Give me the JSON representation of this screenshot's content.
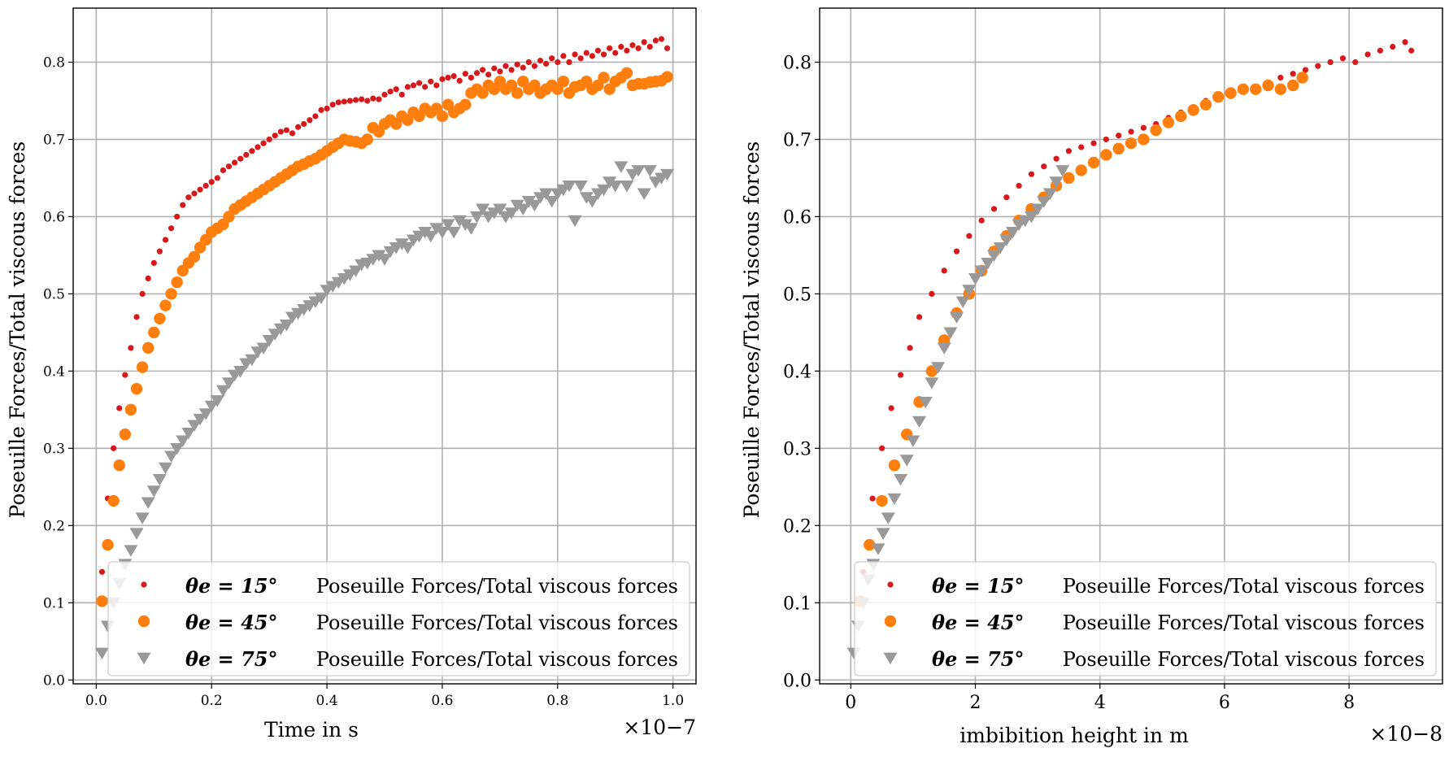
{
  "colors": {
    "series_15": "#d7191c",
    "series_45": "#ff7f0e",
    "series_75": "#999999",
    "grid": "#b0b0b0"
  },
  "chart_data": [
    {
      "type": "scatter",
      "xlabel": "Time in s",
      "ylabel": "Poseuille Forces/Total viscous forces",
      "x_multiplier": "×10−7",
      "xlim": [
        -0.04,
        1.04
      ],
      "ylim": [
        -0.005,
        0.87
      ],
      "xticks": [
        0.0,
        0.2,
        0.4,
        0.6,
        0.8,
        1.0
      ],
      "xtick_labels": [
        "0.0",
        "0.2",
        "0.4",
        "0.6",
        "0.8",
        "1.0"
      ],
      "yticks": [
        0.0,
        0.1,
        0.2,
        0.3,
        0.4,
        0.5,
        0.6,
        0.7,
        0.8
      ],
      "ytick_labels": [
        "0.0",
        "0.1",
        "0.2",
        "0.3",
        "0.4",
        "0.5",
        "0.6",
        "0.7",
        "0.8"
      ],
      "grid": true,
      "legend_position": "bottom-right",
      "series": [
        {
          "name": "Poseuille Forces/Total viscous forces",
          "label_prefix": "θe = 15°",
          "marker": "small-circle",
          "x": [
            0.01,
            0.02,
            0.03,
            0.04,
            0.05,
            0.06,
            0.07,
            0.08,
            0.09,
            0.1,
            0.11,
            0.12,
            0.13,
            0.14,
            0.15,
            0.16,
            0.17,
            0.18,
            0.19,
            0.2,
            0.21,
            0.22,
            0.23,
            0.24,
            0.25,
            0.26,
            0.27,
            0.28,
            0.29,
            0.3,
            0.31,
            0.32,
            0.33,
            0.34,
            0.35,
            0.36,
            0.37,
            0.38,
            0.39,
            0.4,
            0.41,
            0.42,
            0.43,
            0.44,
            0.45,
            0.46,
            0.47,
            0.48,
            0.49,
            0.5,
            0.51,
            0.52,
            0.53,
            0.54,
            0.55,
            0.56,
            0.57,
            0.58,
            0.59,
            0.6,
            0.61,
            0.62,
            0.63,
            0.64,
            0.65,
            0.66,
            0.67,
            0.68,
            0.69,
            0.7,
            0.71,
            0.72,
            0.73,
            0.74,
            0.75,
            0.76,
            0.77,
            0.78,
            0.79,
            0.8,
            0.81,
            0.82,
            0.83,
            0.84,
            0.85,
            0.86,
            0.87,
            0.88,
            0.89,
            0.9,
            0.91,
            0.92,
            0.93,
            0.94,
            0.95,
            0.96,
            0.97,
            0.98,
            0.99
          ],
          "y": [
            0.14,
            0.235,
            0.3,
            0.352,
            0.395,
            0.43,
            0.47,
            0.5,
            0.52,
            0.54,
            0.555,
            0.57,
            0.585,
            0.6,
            0.615,
            0.625,
            0.63,
            0.635,
            0.64,
            0.645,
            0.65,
            0.66,
            0.665,
            0.67,
            0.675,
            0.68,
            0.685,
            0.69,
            0.695,
            0.7,
            0.705,
            0.71,
            0.712,
            0.708,
            0.716,
            0.72,
            0.725,
            0.73,
            0.738,
            0.74,
            0.745,
            0.748,
            0.749,
            0.75,
            0.751,
            0.752,
            0.75,
            0.753,
            0.752,
            0.758,
            0.762,
            0.765,
            0.758,
            0.768,
            0.77,
            0.773,
            0.768,
            0.775,
            0.77,
            0.778,
            0.78,
            0.782,
            0.776,
            0.785,
            0.78,
            0.786,
            0.79,
            0.784,
            0.792,
            0.788,
            0.795,
            0.79,
            0.797,
            0.793,
            0.8,
            0.795,
            0.802,
            0.798,
            0.805,
            0.8,
            0.808,
            0.8,
            0.81,
            0.805,
            0.812,
            0.808,
            0.815,
            0.81,
            0.818,
            0.812,
            0.82,
            0.815,
            0.822,
            0.818,
            0.826,
            0.82,
            0.828,
            0.83,
            0.818
          ]
        },
        {
          "name": "Poseuille Forces/Total viscous forces",
          "label_prefix": "θe = 45°",
          "marker": "circle",
          "x": [
            0.01,
            0.02,
            0.03,
            0.04,
            0.05,
            0.06,
            0.07,
            0.08,
            0.09,
            0.1,
            0.11,
            0.12,
            0.13,
            0.14,
            0.15,
            0.16,
            0.17,
            0.18,
            0.19,
            0.2,
            0.21,
            0.22,
            0.23,
            0.24,
            0.25,
            0.26,
            0.27,
            0.28,
            0.29,
            0.3,
            0.31,
            0.32,
            0.33,
            0.34,
            0.35,
            0.36,
            0.37,
            0.38,
            0.39,
            0.4,
            0.41,
            0.42,
            0.43,
            0.44,
            0.45,
            0.46,
            0.47,
            0.48,
            0.49,
            0.5,
            0.51,
            0.52,
            0.53,
            0.54,
            0.55,
            0.56,
            0.57,
            0.58,
            0.59,
            0.6,
            0.61,
            0.62,
            0.63,
            0.64,
            0.65,
            0.66,
            0.67,
            0.68,
            0.69,
            0.7,
            0.71,
            0.72,
            0.73,
            0.74,
            0.75,
            0.76,
            0.77,
            0.78,
            0.79,
            0.8,
            0.81,
            0.82,
            0.83,
            0.84,
            0.85,
            0.86,
            0.87,
            0.88,
            0.89,
            0.9,
            0.91,
            0.92,
            0.93,
            0.94,
            0.95,
            0.96,
            0.97,
            0.98,
            0.99
          ],
          "y": [
            0.102,
            0.175,
            0.232,
            0.278,
            0.318,
            0.35,
            0.377,
            0.405,
            0.43,
            0.45,
            0.468,
            0.485,
            0.5,
            0.515,
            0.53,
            0.54,
            0.548,
            0.56,
            0.57,
            0.58,
            0.585,
            0.59,
            0.6,
            0.61,
            0.615,
            0.62,
            0.625,
            0.63,
            0.635,
            0.64,
            0.645,
            0.65,
            0.655,
            0.66,
            0.665,
            0.668,
            0.672,
            0.675,
            0.68,
            0.685,
            0.69,
            0.695,
            0.7,
            0.698,
            0.697,
            0.695,
            0.7,
            0.715,
            0.71,
            0.72,
            0.725,
            0.72,
            0.73,
            0.725,
            0.735,
            0.73,
            0.74,
            0.735,
            0.74,
            0.73,
            0.745,
            0.735,
            0.74,
            0.745,
            0.76,
            0.765,
            0.76,
            0.77,
            0.765,
            0.775,
            0.765,
            0.77,
            0.76,
            0.775,
            0.765,
            0.77,
            0.76,
            0.765,
            0.77,
            0.765,
            0.775,
            0.76,
            0.768,
            0.77,
            0.775,
            0.765,
            0.77,
            0.78,
            0.765,
            0.775,
            0.78,
            0.786,
            0.77,
            0.772,
            0.772,
            0.774,
            0.775,
            0.776,
            0.781
          ]
        },
        {
          "name": "Poseuille Forces/Total viscous forces",
          "label_prefix": "θe = 75°",
          "marker": "triangle-down",
          "x": [
            0.01,
            0.02,
            0.03,
            0.04,
            0.05,
            0.06,
            0.07,
            0.08,
            0.09,
            0.1,
            0.11,
            0.12,
            0.13,
            0.14,
            0.15,
            0.16,
            0.17,
            0.18,
            0.19,
            0.2,
            0.21,
            0.22,
            0.23,
            0.24,
            0.25,
            0.26,
            0.27,
            0.28,
            0.29,
            0.3,
            0.31,
            0.32,
            0.33,
            0.34,
            0.35,
            0.36,
            0.37,
            0.38,
            0.39,
            0.4,
            0.41,
            0.42,
            0.43,
            0.44,
            0.45,
            0.46,
            0.47,
            0.48,
            0.49,
            0.5,
            0.51,
            0.52,
            0.53,
            0.54,
            0.55,
            0.56,
            0.57,
            0.58,
            0.59,
            0.6,
            0.61,
            0.62,
            0.63,
            0.64,
            0.65,
            0.66,
            0.67,
            0.68,
            0.69,
            0.7,
            0.71,
            0.72,
            0.73,
            0.74,
            0.75,
            0.76,
            0.77,
            0.78,
            0.79,
            0.8,
            0.81,
            0.82,
            0.83,
            0.84,
            0.85,
            0.86,
            0.87,
            0.88,
            0.89,
            0.9,
            0.91,
            0.92,
            0.93,
            0.94,
            0.95,
            0.96,
            0.97,
            0.98,
            0.99
          ],
          "y": [
            0.035,
            0.07,
            0.1,
            0.125,
            0.15,
            0.168,
            0.19,
            0.21,
            0.23,
            0.245,
            0.26,
            0.275,
            0.29,
            0.3,
            0.31,
            0.32,
            0.33,
            0.338,
            0.345,
            0.355,
            0.362,
            0.375,
            0.385,
            0.395,
            0.4,
            0.41,
            0.415,
            0.425,
            0.43,
            0.44,
            0.448,
            0.455,
            0.46,
            0.47,
            0.475,
            0.48,
            0.485,
            0.49,
            0.495,
            0.505,
            0.51,
            0.515,
            0.52,
            0.525,
            0.53,
            0.538,
            0.54,
            0.545,
            0.55,
            0.545,
            0.555,
            0.56,
            0.565,
            0.56,
            0.57,
            0.575,
            0.58,
            0.575,
            0.585,
            0.58,
            0.59,
            0.58,
            0.595,
            0.59,
            0.585,
            0.6,
            0.61,
            0.6,
            0.605,
            0.61,
            0.6,
            0.605,
            0.615,
            0.61,
            0.62,
            0.615,
            0.625,
            0.63,
            0.62,
            0.63,
            0.635,
            0.64,
            0.595,
            0.64,
            0.625,
            0.62,
            0.63,
            0.635,
            0.645,
            0.64,
            0.665,
            0.64,
            0.655,
            0.66,
            0.63,
            0.66,
            0.645,
            0.65,
            0.655
          ]
        }
      ]
    },
    {
      "type": "scatter",
      "xlabel": "imbibition height in m",
      "ylabel": "Poseuille Forces/Total viscous forces",
      "x_multiplier": "×10−8",
      "xlim": [
        -0.5,
        9.5
      ],
      "ylim": [
        -0.005,
        0.87
      ],
      "xticks": [
        0,
        2,
        4,
        6,
        8
      ],
      "xtick_labels": [
        "0",
        "2",
        "4",
        "6",
        "8"
      ],
      "yticks": [
        0.0,
        0.1,
        0.2,
        0.3,
        0.4,
        0.5,
        0.6,
        0.7,
        0.8
      ],
      "ytick_labels": [
        "0.0",
        "0.1",
        "0.2",
        "0.3",
        "0.4",
        "0.5",
        "0.6",
        "0.7",
        "0.8"
      ],
      "grid": true,
      "legend_position": "bottom-right",
      "series": [
        {
          "name": "Poseuille Forces/Total viscous forces",
          "label_prefix": "θe = 15°",
          "marker": "small-circle",
          "x": [
            0.2,
            0.35,
            0.5,
            0.65,
            0.8,
            0.95,
            1.1,
            1.3,
            1.5,
            1.7,
            1.9,
            2.1,
            2.3,
            2.5,
            2.7,
            2.9,
            3.1,
            3.3,
            3.5,
            3.7,
            3.9,
            4.1,
            4.3,
            4.5,
            4.7,
            4.9,
            5.1,
            5.3,
            5.5,
            5.7,
            5.9,
            6.1,
            6.3,
            6.5,
            6.7,
            6.9,
            7.1,
            7.3,
            7.5,
            7.7,
            7.9,
            8.1,
            8.3,
            8.5,
            8.7,
            8.9,
            9.0
          ],
          "y": [
            0.14,
            0.235,
            0.3,
            0.352,
            0.395,
            0.43,
            0.47,
            0.5,
            0.53,
            0.555,
            0.575,
            0.595,
            0.61,
            0.625,
            0.64,
            0.655,
            0.665,
            0.675,
            0.685,
            0.69,
            0.695,
            0.7,
            0.705,
            0.71,
            0.715,
            0.72,
            0.728,
            0.735,
            0.742,
            0.75,
            0.752,
            0.756,
            0.762,
            0.768,
            0.774,
            0.78,
            0.785,
            0.79,
            0.795,
            0.8,
            0.805,
            0.8,
            0.81,
            0.815,
            0.82,
            0.826,
            0.815
          ]
        },
        {
          "name": "Poseuille Forces/Total viscous forces",
          "label_prefix": "θe = 45°",
          "marker": "circle",
          "x": [
            0.15,
            0.3,
            0.5,
            0.7,
            0.9,
            1.1,
            1.3,
            1.5,
            1.7,
            1.9,
            2.1,
            2.3,
            2.5,
            2.7,
            2.9,
            3.1,
            3.3,
            3.5,
            3.7,
            3.9,
            4.1,
            4.3,
            4.5,
            4.7,
            4.9,
            5.1,
            5.3,
            5.5,
            5.7,
            5.9,
            6.1,
            6.3,
            6.5,
            6.7,
            6.9,
            7.1,
            7.25
          ],
          "y": [
            0.102,
            0.175,
            0.232,
            0.278,
            0.318,
            0.36,
            0.4,
            0.44,
            0.475,
            0.5,
            0.53,
            0.555,
            0.575,
            0.595,
            0.61,
            0.625,
            0.64,
            0.65,
            0.66,
            0.67,
            0.68,
            0.688,
            0.695,
            0.7,
            0.712,
            0.722,
            0.73,
            0.738,
            0.745,
            0.755,
            0.76,
            0.765,
            0.765,
            0.77,
            0.765,
            0.77,
            0.78
          ]
        },
        {
          "name": "Poseuille Forces/Total viscous forces",
          "label_prefix": "θe = 75°",
          "marker": "triangle-down",
          "x": [
            0.05,
            0.12,
            0.2,
            0.28,
            0.36,
            0.44,
            0.52,
            0.6,
            0.7,
            0.8,
            0.9,
            1.0,
            1.1,
            1.2,
            1.3,
            1.4,
            1.5,
            1.6,
            1.7,
            1.8,
            1.9,
            2.0,
            2.1,
            2.2,
            2.3,
            2.4,
            2.5,
            2.6,
            2.7,
            2.8,
            2.9,
            3.0,
            3.1,
            3.2,
            3.3,
            3.4
          ],
          "y": [
            0.035,
            0.07,
            0.1,
            0.13,
            0.15,
            0.17,
            0.19,
            0.21,
            0.235,
            0.26,
            0.285,
            0.31,
            0.335,
            0.36,
            0.385,
            0.405,
            0.43,
            0.45,
            0.47,
            0.49,
            0.505,
            0.52,
            0.53,
            0.54,
            0.55,
            0.56,
            0.57,
            0.58,
            0.59,
            0.595,
            0.6,
            0.61,
            0.62,
            0.63,
            0.645,
            0.66
          ]
        }
      ]
    }
  ]
}
